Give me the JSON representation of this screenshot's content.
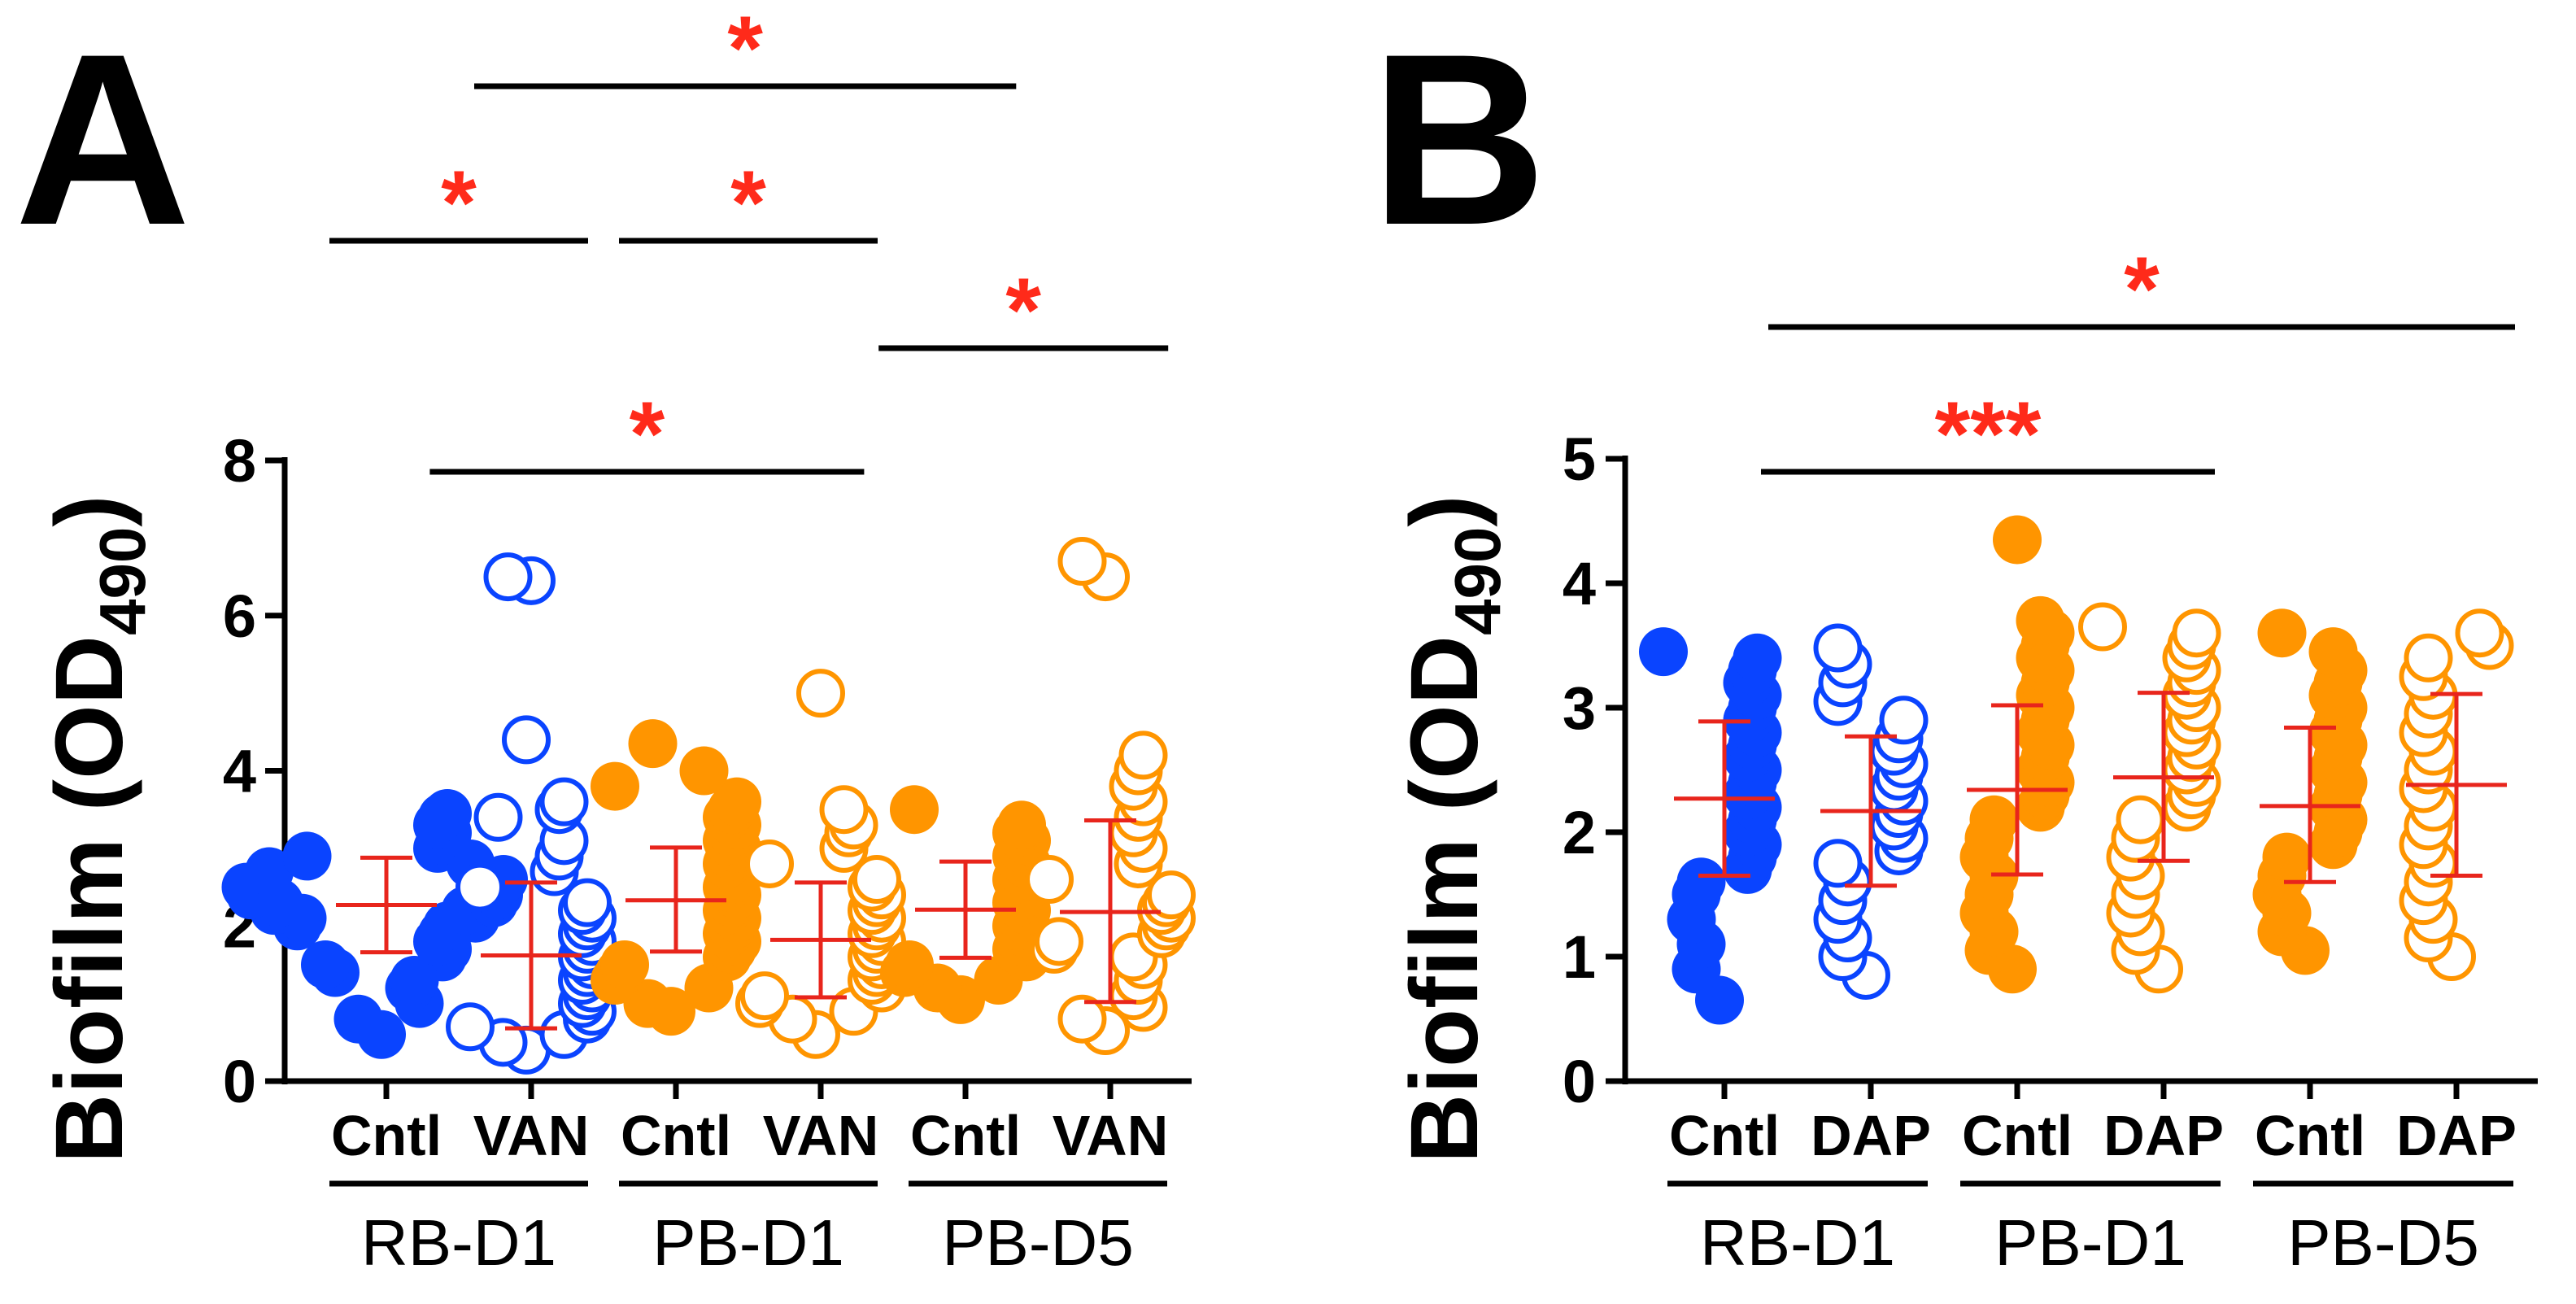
{
  "panel_labels": [
    "A",
    "B"
  ],
  "colors": {
    "blue": "#0a44ff",
    "orange": "#ff9500",
    "error": "#e8251c",
    "star": "#ff2a1a",
    "axis": "#000000"
  },
  "chart_data": [
    {
      "type": "scatter",
      "panel": "A",
      "ylabel_main": "Biofilm (OD",
      "ylabel_sub": "490",
      "ylabel_close": ")",
      "ylim": [
        0,
        8
      ],
      "yticks": [
        0,
        2,
        4,
        6,
        8
      ],
      "categories": [
        "Cntl",
        "VAN",
        "Cntl",
        "VAN",
        "Cntl",
        "VAN"
      ],
      "groups": [
        {
          "label": "RB-D1",
          "categories": [
            0,
            1
          ]
        },
        {
          "label": "PB-D1",
          "categories": [
            2,
            3
          ]
        },
        {
          "label": "PB-D5",
          "categories": [
            4,
            5
          ]
        }
      ],
      "series": [
        {
          "category": 0,
          "color": "blue",
          "filled": true,
          "mean": 2.27,
          "sd_low": 1.66,
          "sd_high": 2.88,
          "values": [
            0.6,
            0.8,
            1.0,
            1.2,
            1.3,
            1.4,
            1.5,
            1.6,
            1.7,
            1.8,
            1.9,
            2.0,
            2.0,
            2.1,
            2.1,
            2.2,
            2.2,
            2.3,
            2.3,
            2.4,
            2.4,
            2.5,
            2.5,
            2.6,
            2.7,
            2.8,
            2.9,
            3.0,
            3.1,
            3.2,
            3.3,
            3.4,
            3.45
          ]
        },
        {
          "category": 1,
          "color": "blue",
          "filled": false,
          "mean": 1.62,
          "sd_low": 0.68,
          "sd_high": 2.56,
          "values": [
            0.4,
            0.5,
            0.6,
            0.7,
            0.8,
            0.9,
            1.0,
            1.1,
            1.2,
            1.3,
            1.4,
            1.5,
            1.6,
            1.7,
            1.8,
            1.9,
            2.0,
            2.1,
            2.2,
            2.3,
            2.5,
            2.7,
            2.9,
            3.1,
            3.4,
            3.5,
            3.6,
            4.4,
            6.5,
            6.45
          ]
        },
        {
          "category": 2,
          "color": "orange",
          "filled": true,
          "mean": 2.33,
          "sd_low": 1.67,
          "sd_high": 3.01,
          "values": [
            0.9,
            1.0,
            1.2,
            1.3,
            1.4,
            1.5,
            1.6,
            1.7,
            1.8,
            1.9,
            2.0,
            2.1,
            2.2,
            2.3,
            2.4,
            2.5,
            2.6,
            2.7,
            2.8,
            2.9,
            3.0,
            3.1,
            3.2,
            3.3,
            3.4,
            3.5,
            3.6,
            3.8,
            4.0,
            4.35
          ]
        },
        {
          "category": 3,
          "color": "orange",
          "filled": false,
          "mean": 1.82,
          "sd_low": 1.08,
          "sd_high": 2.56,
          "values": [
            0.6,
            0.8,
            0.9,
            1.0,
            1.1,
            1.2,
            1.3,
            1.4,
            1.5,
            1.6,
            1.7,
            1.8,
            1.9,
            2.0,
            2.1,
            2.2,
            2.3,
            2.4,
            2.5,
            2.6,
            2.8,
            3.0,
            3.2,
            3.3,
            3.5,
            5.0
          ]
        },
        {
          "category": 4,
          "color": "orange",
          "filled": true,
          "mean": 2.21,
          "sd_low": 1.59,
          "sd_high": 2.83,
          "values": [
            1.05,
            1.2,
            1.3,
            1.4,
            1.5,
            1.6,
            1.7,
            1.8,
            1.9,
            2.0,
            2.1,
            2.2,
            2.3,
            2.4,
            2.5,
            2.6,
            2.7,
            2.8,
            2.9,
            3.0,
            3.1,
            3.2,
            3.3,
            3.5
          ]
        },
        {
          "category": 5,
          "color": "orange",
          "filled": false,
          "mean": 2.18,
          "sd_low": 1.02,
          "sd_high": 3.36,
          "values": [
            0.65,
            0.8,
            0.95,
            1.1,
            1.3,
            1.5,
            1.6,
            1.7,
            1.8,
            1.9,
            2.0,
            2.1,
            2.2,
            2.3,
            2.4,
            2.6,
            2.8,
            3.0,
            3.2,
            3.4,
            3.6,
            3.8,
            4.0,
            4.2,
            6.5,
            6.7
          ]
        }
      ],
      "significance": [
        {
          "from": 0,
          "to": 1,
          "label": "*",
          "level": 3
        },
        {
          "from": 2,
          "to": 3,
          "label": "*",
          "level": 3
        },
        {
          "from": 1,
          "to": 4.35,
          "label": "*",
          "level": 4
        },
        {
          "from": 3.4,
          "to": 5.4,
          "label": "*",
          "level": 2
        },
        {
          "from": 0.3,
          "to": 3.3,
          "label": "*",
          "level": 1
        }
      ]
    },
    {
      "type": "scatter",
      "panel": "B",
      "ylabel_main": "Biofilm (OD",
      "ylabel_sub": "490",
      "ylabel_close": ")",
      "ylim": [
        0,
        5
      ],
      "yticks": [
        0,
        1,
        2,
        3,
        4,
        5
      ],
      "categories": [
        "Cntl",
        "DAP",
        "Cntl",
        "DAP",
        "Cntl",
        "DAP"
      ],
      "groups": [
        {
          "label": "RB-D1",
          "categories": [
            0,
            1
          ]
        },
        {
          "label": "PB-D1",
          "categories": [
            2,
            3
          ]
        },
        {
          "label": "PB-D5",
          "categories": [
            4,
            5
          ]
        }
      ],
      "series": [
        {
          "category": 0,
          "color": "blue",
          "filled": true,
          "mean": 2.27,
          "sd_low": 1.65,
          "sd_high": 2.89,
          "values": [
            0.65,
            0.9,
            1.1,
            1.3,
            1.5,
            1.6,
            1.7,
            1.8,
            1.9,
            2.0,
            2.1,
            2.2,
            2.3,
            2.4,
            2.5,
            2.6,
            2.7,
            2.8,
            2.9,
            3.0,
            3.1,
            3.2,
            3.3,
            3.4,
            3.45
          ]
        },
        {
          "category": 1,
          "color": "blue",
          "filled": false,
          "mean": 2.17,
          "sd_low": 1.57,
          "sd_high": 2.77,
          "values": [
            0.85,
            1.0,
            1.15,
            1.3,
            1.45,
            1.6,
            1.75,
            1.85,
            1.95,
            2.05,
            2.15,
            2.25,
            2.35,
            2.45,
            2.55,
            2.65,
            2.75,
            2.9,
            3.05,
            3.2,
            3.35,
            3.48
          ]
        },
        {
          "category": 2,
          "color": "orange",
          "filled": true,
          "mean": 2.34,
          "sd_low": 1.66,
          "sd_high": 3.02,
          "values": [
            0.9,
            1.05,
            1.2,
            1.35,
            1.5,
            1.65,
            1.8,
            1.95,
            2.1,
            2.2,
            2.3,
            2.4,
            2.5,
            2.6,
            2.7,
            2.8,
            2.9,
            3.0,
            3.1,
            3.2,
            3.3,
            3.4,
            3.5,
            3.6,
            3.7,
            4.35
          ]
        },
        {
          "category": 3,
          "color": "orange",
          "filled": false,
          "mean": 2.44,
          "sd_low": 1.77,
          "sd_high": 3.12,
          "values": [
            0.9,
            1.05,
            1.2,
            1.35,
            1.5,
            1.65,
            1.8,
            1.95,
            2.1,
            2.2,
            2.3,
            2.4,
            2.5,
            2.6,
            2.7,
            2.8,
            2.9,
            3.0,
            3.1,
            3.2,
            3.3,
            3.4,
            3.5,
            3.6,
            3.65
          ]
        },
        {
          "category": 4,
          "color": "orange",
          "filled": true,
          "mean": 2.21,
          "sd_low": 1.6,
          "sd_high": 2.84,
          "values": [
            1.05,
            1.2,
            1.35,
            1.5,
            1.65,
            1.8,
            1.9,
            2.0,
            2.1,
            2.2,
            2.3,
            2.4,
            2.5,
            2.6,
            2.7,
            2.8,
            2.9,
            3.0,
            3.1,
            3.2,
            3.3,
            3.45,
            3.6
          ]
        },
        {
          "category": 5,
          "color": "orange",
          "filled": false,
          "mean": 2.38,
          "sd_low": 1.65,
          "sd_high": 3.11,
          "values": [
            1.0,
            1.15,
            1.3,
            1.45,
            1.6,
            1.75,
            1.9,
            2.05,
            2.2,
            2.35,
            2.5,
            2.65,
            2.8,
            2.95,
            3.1,
            3.25,
            3.4,
            3.5,
            3.6
          ]
        }
      ],
      "significance": [
        {
          "from": 0.25,
          "to": 3.35,
          "label": "***",
          "level": 1
        },
        {
          "from": 0.3,
          "to": 5.4,
          "label": "*",
          "level": 2
        }
      ]
    }
  ]
}
